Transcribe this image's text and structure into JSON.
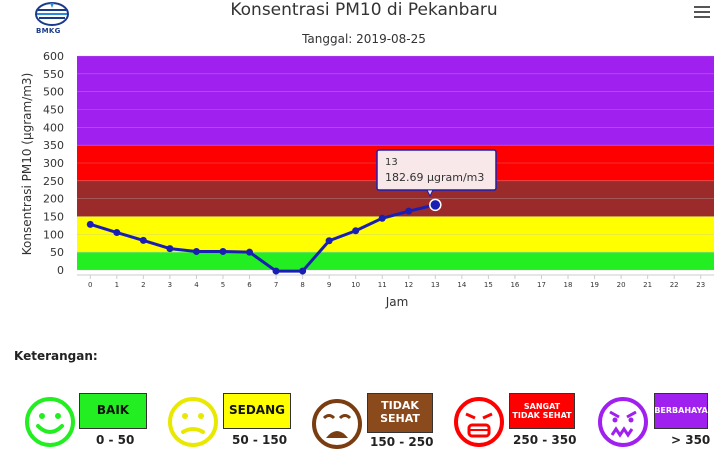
{
  "header": {
    "logo_text": "BMKG",
    "title": "Konsentrasi PM10 di Pekanbaru",
    "subtitle": "Tanggal: 2019-08-25"
  },
  "chart_data": {
    "type": "line",
    "title": "Konsentrasi PM10 di Pekanbaru",
    "subtitle": "Tanggal: 2019-08-25",
    "xlabel": "Jam",
    "ylabel": "Konsentrasi PM10 (µgram/m3)",
    "ylim": [
      0,
      600
    ],
    "yticks": [
      0,
      50,
      100,
      150,
      200,
      250,
      300,
      350,
      400,
      450,
      500,
      550,
      600
    ],
    "categories": [
      "0",
      "1",
      "2",
      "3",
      "4",
      "5",
      "6",
      "7",
      "8",
      "9",
      "10",
      "11",
      "12",
      "13",
      "14",
      "15",
      "16",
      "17",
      "18",
      "19",
      "20",
      "21",
      "22",
      "23"
    ],
    "series": [
      {
        "values": [
          128,
          105,
          83,
          60,
          52,
          52,
          50,
          -3,
          -3,
          82,
          110,
          145,
          165,
          182.69,
          null,
          null,
          null,
          null,
          null,
          null,
          null,
          null,
          null,
          null
        ],
        "color": "#1a1fb4"
      }
    ],
    "bands": [
      {
        "from": 0,
        "to": 50,
        "color": "#22ee22"
      },
      {
        "from": 50,
        "to": 150,
        "color": "#ffff00"
      },
      {
        "from": 150,
        "to": 250,
        "color": "#9b2a2a"
      },
      {
        "from": 250,
        "to": 350,
        "color": "#ff0000"
      },
      {
        "from": 350,
        "to": 600,
        "color": "#a020f0"
      }
    ],
    "tooltip": {
      "hour": "13",
      "value_text": "182.69 µgram/m3"
    }
  },
  "legend": {
    "title": "Keterangan:",
    "items": [
      {
        "label": "BAIK",
        "range": "0 - 50",
        "color": "#22ee22",
        "face": "happy-face-icon"
      },
      {
        "label": "SEDANG",
        "range": "50 - 150",
        "color": "#ffff00",
        "face": "neutral-face-icon"
      },
      {
        "label": "TIDAK SEHAT",
        "range": "150 - 250",
        "color": "#8b4a1c",
        "face": "unhappy-face-icon"
      },
      {
        "label": "SANGAT TIDAK SEHAT",
        "range": "250 - 350",
        "color": "#ff0000",
        "face": "sick-face-icon"
      },
      {
        "label": "BERBAHAYA",
        "range": "> 350",
        "color": "#a020f0",
        "face": "angry-face-icon"
      }
    ]
  },
  "colors": {
    "line": "#1a1fb4",
    "gridline": "#bbbbbb",
    "tooltip_border": "#1a1fb4",
    "tooltip_bg": "#f8e8ea"
  }
}
